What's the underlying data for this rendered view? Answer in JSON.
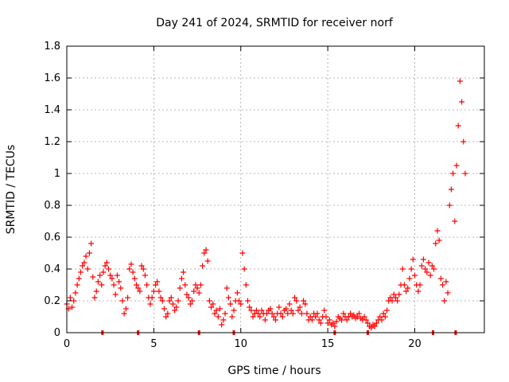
{
  "chart_data": {
    "type": "scatter",
    "title": "Day 241 of 2024, SRMTID for receiver norf",
    "xlabel": "GPS time / hours",
    "ylabel": "SRMTID / TECUs",
    "xlim": [
      0,
      24
    ],
    "ylim": [
      0,
      1.8
    ],
    "xticks": [
      0,
      5,
      10,
      15,
      20
    ],
    "yticks": [
      0,
      0.2,
      0.4,
      0.6,
      0.8,
      1,
      1.2,
      1.4,
      1.6,
      1.8
    ],
    "xtick_labels": [
      "0",
      "5",
      "10",
      "15",
      "20"
    ],
    "ytick_labels": [
      "0",
      "0.2",
      "0.4",
      "0.6",
      "0.8",
      "1",
      "1.2",
      "1.4",
      "1.6",
      "1.8"
    ],
    "grid": true,
    "marker": "+",
    "color": "#ff0000",
    "series": [
      {
        "name": "SRMTID",
        "points": [
          [
            0.0,
            0.18
          ],
          [
            0.1,
            0.15
          ],
          [
            0.2,
            0.22
          ],
          [
            0.3,
            0.16
          ],
          [
            0.4,
            0.2
          ],
          [
            0.5,
            0.25
          ],
          [
            0.6,
            0.3
          ],
          [
            0.7,
            0.34
          ],
          [
            0.8,
            0.38
          ],
          [
            0.9,
            0.42
          ],
          [
            1.0,
            0.44
          ],
          [
            1.1,
            0.48
          ],
          [
            1.2,
            0.4
          ],
          [
            1.3,
            0.5
          ],
          [
            1.4,
            0.56
          ],
          [
            1.5,
            0.35
          ],
          [
            1.6,
            0.22
          ],
          [
            1.7,
            0.26
          ],
          [
            1.8,
            0.32
          ],
          [
            1.9,
            0.36
          ],
          [
            2.0,
            0.3
          ],
          [
            2.1,
            0.38
          ],
          [
            2.2,
            0.42
          ],
          [
            2.3,
            0.44
          ],
          [
            2.4,
            0.4
          ],
          [
            2.5,
            0.36
          ],
          [
            2.6,
            0.34
          ],
          [
            2.7,
            0.3
          ],
          [
            2.8,
            0.24
          ],
          [
            2.9,
            0.36
          ],
          [
            3.0,
            0.32
          ],
          [
            3.1,
            0.28
          ],
          [
            3.2,
            0.2
          ],
          [
            3.3,
            0.12
          ],
          [
            3.4,
            0.15
          ],
          [
            3.5,
            0.22
          ],
          [
            3.6,
            0.4
          ],
          [
            3.7,
            0.43
          ],
          [
            3.8,
            0.38
          ],
          [
            3.9,
            0.34
          ],
          [
            4.0,
            0.3
          ],
          [
            4.1,
            0.28
          ],
          [
            4.2,
            0.26
          ],
          [
            4.3,
            0.42
          ],
          [
            4.4,
            0.4
          ],
          [
            4.5,
            0.36
          ],
          [
            4.6,
            0.3
          ],
          [
            4.7,
            0.22
          ],
          [
            4.8,
            0.18
          ],
          [
            4.9,
            0.22
          ],
          [
            5.0,
            0.26
          ],
          [
            5.1,
            0.3
          ],
          [
            5.2,
            0.32
          ],
          [
            5.3,
            0.26
          ],
          [
            5.4,
            0.22
          ],
          [
            5.5,
            0.2
          ],
          [
            5.6,
            0.15
          ],
          [
            5.7,
            0.1
          ],
          [
            5.8,
            0.12
          ],
          [
            5.9,
            0.2
          ],
          [
            6.0,
            0.22
          ],
          [
            6.1,
            0.18
          ],
          [
            6.2,
            0.14
          ],
          [
            6.3,
            0.16
          ],
          [
            6.4,
            0.2
          ],
          [
            6.5,
            0.28
          ],
          [
            6.6,
            0.34
          ],
          [
            6.7,
            0.38
          ],
          [
            6.8,
            0.3
          ],
          [
            6.9,
            0.24
          ],
          [
            7.0,
            0.22
          ],
          [
            7.1,
            0.18
          ],
          [
            7.2,
            0.2
          ],
          [
            7.3,
            0.26
          ],
          [
            7.4,
            0.3
          ],
          [
            7.5,
            0.28
          ],
          [
            7.6,
            0.25
          ],
          [
            7.7,
            0.3
          ],
          [
            7.8,
            0.42
          ],
          [
            7.9,
            0.5
          ],
          [
            8.0,
            0.52
          ],
          [
            8.1,
            0.45
          ],
          [
            8.2,
            0.2
          ],
          [
            8.3,
            0.16
          ],
          [
            8.4,
            0.18
          ],
          [
            8.5,
            0.12
          ],
          [
            8.6,
            0.14
          ],
          [
            8.7,
            0.1
          ],
          [
            8.8,
            0.15
          ],
          [
            8.9,
            0.05
          ],
          [
            9.0,
            0.08
          ],
          [
            9.1,
            0.12
          ],
          [
            9.2,
            0.28
          ],
          [
            9.3,
            0.22
          ],
          [
            9.4,
            0.18
          ],
          [
            9.5,
            0.1
          ],
          [
            9.6,
            0.14
          ],
          [
            9.7,
            0.2
          ],
          [
            9.8,
            0.25
          ],
          [
            9.9,
            0.2
          ],
          [
            10.0,
            0.18
          ],
          [
            10.1,
            0.5
          ],
          [
            10.2,
            0.4
          ],
          [
            10.3,
            0.3
          ],
          [
            10.4,
            0.2
          ],
          [
            10.5,
            0.16
          ],
          [
            10.6,
            0.14
          ],
          [
            10.7,
            0.1
          ],
          [
            10.8,
            0.12
          ],
          [
            10.9,
            0.14
          ],
          [
            11.0,
            0.12
          ],
          [
            11.1,
            0.1
          ],
          [
            11.2,
            0.14
          ],
          [
            11.3,
            0.12
          ],
          [
            11.4,
            0.08
          ],
          [
            11.5,
            0.12
          ],
          [
            11.6,
            0.14
          ],
          [
            11.7,
            0.15
          ],
          [
            11.8,
            0.12
          ],
          [
            11.9,
            0.1
          ],
          [
            12.0,
            0.08
          ],
          [
            12.1,
            0.12
          ],
          [
            12.2,
            0.16
          ],
          [
            12.3,
            0.12
          ],
          [
            12.4,
            0.1
          ],
          [
            12.5,
            0.14
          ],
          [
            12.6,
            0.15
          ],
          [
            12.7,
            0.12
          ],
          [
            12.8,
            0.18
          ],
          [
            12.9,
            0.14
          ],
          [
            13.0,
            0.12
          ],
          [
            13.1,
            0.22
          ],
          [
            13.2,
            0.2
          ],
          [
            13.3,
            0.14
          ],
          [
            13.4,
            0.16
          ],
          [
            13.5,
            0.12
          ],
          [
            13.6,
            0.2
          ],
          [
            13.7,
            0.18
          ],
          [
            13.8,
            0.12
          ],
          [
            13.9,
            0.08
          ],
          [
            14.0,
            0.1
          ],
          [
            14.1,
            0.08
          ],
          [
            14.2,
            0.12
          ],
          [
            14.3,
            0.1
          ],
          [
            14.4,
            0.12
          ],
          [
            14.5,
            0.08
          ],
          [
            14.6,
            0.06
          ],
          [
            14.7,
            0.1
          ],
          [
            14.8,
            0.14
          ],
          [
            14.9,
            0.1
          ],
          [
            15.0,
            0.06
          ],
          [
            15.1,
            0.08
          ],
          [
            15.2,
            0.05
          ],
          [
            15.3,
            0.06
          ],
          [
            15.4,
            0.04
          ],
          [
            15.5,
            0.07
          ],
          [
            15.6,
            0.1
          ],
          [
            15.7,
            0.09
          ],
          [
            15.8,
            0.08
          ],
          [
            15.9,
            0.12
          ],
          [
            16.0,
            0.1
          ],
          [
            16.1,
            0.08
          ],
          [
            16.2,
            0.1
          ],
          [
            16.3,
            0.12
          ],
          [
            16.4,
            0.1
          ],
          [
            16.5,
            0.11
          ],
          [
            16.6,
            0.09
          ],
          [
            16.7,
            0.1
          ],
          [
            16.8,
            0.12
          ],
          [
            16.9,
            0.09
          ],
          [
            17.0,
            0.08
          ],
          [
            17.1,
            0.1
          ],
          [
            17.2,
            0.08
          ],
          [
            17.3,
            0.06
          ],
          [
            17.4,
            0.04
          ],
          [
            17.5,
            0.03
          ],
          [
            17.6,
            0.05
          ],
          [
            17.7,
            0.04
          ],
          [
            17.8,
            0.06
          ],
          [
            17.9,
            0.08
          ],
          [
            18.0,
            0.1
          ],
          [
            18.1,
            0.08
          ],
          [
            18.2,
            0.12
          ],
          [
            18.3,
            0.1
          ],
          [
            18.4,
            0.14
          ],
          [
            18.5,
            0.2
          ],
          [
            18.6,
            0.22
          ],
          [
            18.7,
            0.2
          ],
          [
            18.8,
            0.24
          ],
          [
            18.9,
            0.22
          ],
          [
            19.0,
            0.2
          ],
          [
            19.1,
            0.24
          ],
          [
            19.2,
            0.3
          ],
          [
            19.3,
            0.4
          ],
          [
            19.4,
            0.3
          ],
          [
            19.5,
            0.26
          ],
          [
            19.6,
            0.28
          ],
          [
            19.7,
            0.34
          ],
          [
            19.8,
            0.4
          ],
          [
            19.9,
            0.46
          ],
          [
            20.0,
            0.36
          ],
          [
            20.1,
            0.3
          ],
          [
            20.2,
            0.26
          ],
          [
            20.3,
            0.3
          ],
          [
            20.4,
            0.42
          ],
          [
            20.5,
            0.46
          ],
          [
            20.6,
            0.4
          ],
          [
            20.7,
            0.38
          ],
          [
            20.8,
            0.44
          ],
          [
            20.9,
            0.36
          ],
          [
            21.0,
            0.42
          ],
          [
            21.1,
            0.4
          ],
          [
            21.2,
            0.56
          ],
          [
            21.3,
            0.64
          ],
          [
            21.4,
            0.58
          ],
          [
            21.5,
            0.34
          ],
          [
            21.6,
            0.3
          ],
          [
            21.7,
            0.2
          ],
          [
            21.8,
            0.32
          ],
          [
            21.9,
            0.25
          ],
          [
            22.0,
            0.8
          ],
          [
            22.1,
            0.9
          ],
          [
            22.2,
            1.0
          ],
          [
            22.3,
            0.7
          ],
          [
            22.4,
            1.05
          ],
          [
            22.5,
            1.3
          ],
          [
            22.6,
            1.58
          ],
          [
            22.7,
            1.45
          ],
          [
            22.8,
            1.2
          ],
          [
            22.9,
            1.0
          ]
        ]
      }
    ],
    "gap_markers_x": [
      2.05,
      4.1,
      7.6,
      9.6,
      15.4,
      17.3,
      21.05,
      22.35
    ]
  }
}
